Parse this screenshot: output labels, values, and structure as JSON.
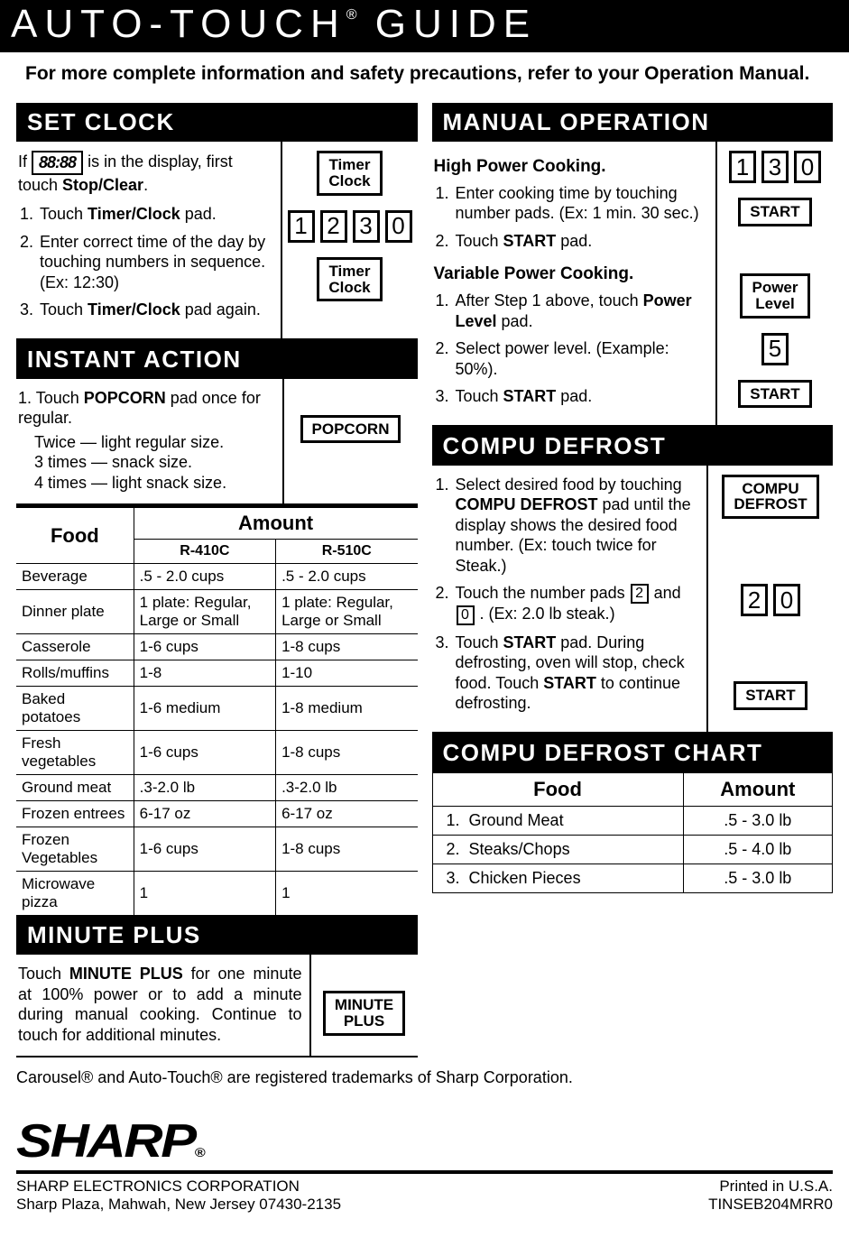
{
  "title_pre": "AUTO-TOUCH",
  "title_reg": "®",
  "title_post": " GUIDE",
  "intro": "For more complete information and safety precautions, refer to your Operation Manual.",
  "set_clock": {
    "header": "SET CLOCK",
    "display": "88:88",
    "line_if_pre": "If ",
    "line_if_post": " is in the display, first touch ",
    "stop_clear": "Stop/Clear",
    "period": ".",
    "steps": [
      {
        "pre": "Touch ",
        "b": "Timer/Clock",
        "post": " pad."
      },
      {
        "pre": "Enter correct time of the day by touching numbers in sequence. (Ex: 12:30)",
        "b": "",
        "post": ""
      },
      {
        "pre": "Touch ",
        "b": "Timer/Clock",
        "post": " pad again."
      }
    ],
    "btn_timer_clock": "Timer\nClock",
    "digits": [
      "1",
      "2",
      "3",
      "0"
    ]
  },
  "instant_action": {
    "header": "INSTANT ACTION",
    "line1_pre": "1. Touch ",
    "line1_b": "POPCORN",
    "line1_post": " pad once for regular.",
    "sub1": "Twice   — light regular size.",
    "sub2": "3 times — snack size.",
    "sub3": "4 times — light snack size.",
    "btn": "POPCORN"
  },
  "amount_table": {
    "food_hdr": "Food",
    "amount_hdr": "Amount",
    "model_a": "R-410C",
    "model_b": "R-510C",
    "rows": [
      {
        "f": "Beverage",
        "a": ".5 - 2.0 cups",
        "b": ".5 - 2.0 cups"
      },
      {
        "f": "Dinner plate",
        "a": "1 plate: Regular, Large or Small",
        "b": "1 plate: Regular, Large or Small"
      },
      {
        "f": "Casserole",
        "a": "1-6 cups",
        "b": "1-8 cups"
      },
      {
        "f": "Rolls/muffins",
        "a": "1-8",
        "b": "1-10"
      },
      {
        "f": "Baked potatoes",
        "a": "1-6 medium",
        "b": "1-8 medium"
      },
      {
        "f": "Fresh vegetables",
        "a": "1-6 cups",
        "b": "1-8 cups"
      },
      {
        "f": "Ground meat",
        "a": ".3-2.0 lb",
        "b": ".3-2.0 lb"
      },
      {
        "f": "Frozen entrees",
        "a": "6-17 oz",
        "b": "6-17 oz"
      },
      {
        "f": "Frozen Vegetables",
        "a": "1-6 cups",
        "b": "1-8 cups"
      },
      {
        "f": "Microwave pizza",
        "a": "1",
        "b": "1"
      }
    ]
  },
  "minute_plus": {
    "header": "MINUTE PLUS",
    "text_pre": "Touch ",
    "text_b": "MINUTE PLUS",
    "text_post": " for one minute at 100% power or to add a minute during manual cooking. Continue to touch for additional minutes.",
    "btn": "MINUTE\nPLUS"
  },
  "manual_op": {
    "header": "MANUAL OPERATION",
    "high_hdr": "High Power Cooking.",
    "high_steps": [
      {
        "pre": "Enter cooking time by touching number pads. (Ex: 1 min. 30 sec.)",
        "b": "",
        "post": ""
      },
      {
        "pre": "Touch ",
        "b": "START",
        "post": " pad."
      }
    ],
    "var_hdr": "Variable Power Cooking.",
    "var_steps": [
      {
        "pre": "After Step 1 above, touch ",
        "b": "Power Level",
        "post": " pad."
      },
      {
        "pre": "Select power level. (Example: 50%).",
        "b": "",
        "post": ""
      },
      {
        "pre": "Touch ",
        "b": "START",
        "post": " pad."
      }
    ],
    "digits": [
      "1",
      "3",
      "0"
    ],
    "btn_start": "START",
    "btn_power": "Power\nLevel",
    "digit5": "5"
  },
  "compu_defrost": {
    "header": "COMPU DEFROST",
    "s1_pre": "Select desired food by touching ",
    "s1_b": "COMPU DEFROST",
    "s1_post": " pad until the display shows the desired food number. (Ex: touch twice for Steak.)",
    "s2_pre": "Touch the number pads ",
    "s2_d1": "2",
    "s2_mid": " and ",
    "s2_d2": "0",
    "s2_post": " . (Ex: 2.0 lb steak.)",
    "s3_pre": "Touch ",
    "s3_b1": "START",
    "s3_mid": " pad. During defrosting, oven will stop, check food. Touch ",
    "s3_b2": "START",
    "s3_post": " to continue defrosting.",
    "btn_cd": "COMPU\nDEFROST",
    "digits": [
      "2",
      "0"
    ],
    "btn_start": "START"
  },
  "compu_chart": {
    "header": "COMPU DEFROST CHART",
    "food_hdr": "Food",
    "amount_hdr": "Amount",
    "rows": [
      {
        "n": "1.",
        "f": "Ground Meat",
        "a": ".5 - 3.0 lb"
      },
      {
        "n": "2.",
        "f": "Steaks/Chops",
        "a": ".5 - 4.0 lb"
      },
      {
        "n": "3.",
        "f": "Chicken Pieces",
        "a": ".5 - 3.0 lb"
      }
    ]
  },
  "trademark": "Carousel® and Auto-Touch® are registered trademarks of Sharp Corporation.",
  "footer": {
    "logo": "SHARP",
    "reg": "®",
    "corp": "SHARP ELECTRONICS CORPORATION",
    "addr": "Sharp Plaza, Mahwah, New Jersey 07430-2135",
    "printed": "Printed in U.S.A.",
    "partno": "TINSEB204MRR0"
  }
}
